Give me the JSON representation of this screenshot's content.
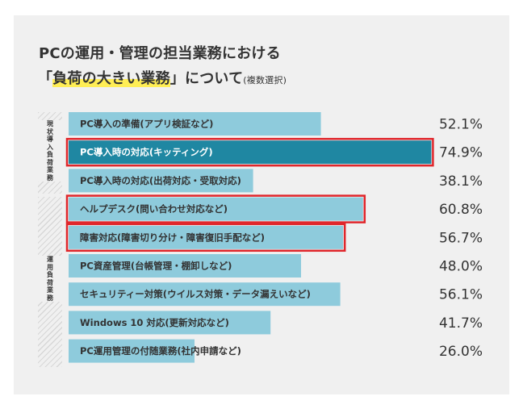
{
  "title": {
    "line1": "PCの運用・管理の担当業務における",
    "line2_open": "「",
    "line2_highlight": "負荷の大きい業務",
    "line2_close": "」について",
    "line2_note": "(複数選択)"
  },
  "groups": {
    "current": "現状導入負荷業務",
    "operation": "運用負荷業務"
  },
  "colors": {
    "bar": "#8ecbdc",
    "bar_emphasis": "#1f87a2",
    "frame": "#e0262b",
    "panel": "#f0f0f0",
    "highlight": "#ffee55"
  },
  "chart_data": {
    "type": "bar",
    "orientation": "horizontal",
    "unit": "%",
    "xlim": [
      0,
      100
    ],
    "categories": [
      "PC導入の準備(アプリ検証など)",
      "PC導入時の対応(キッティング)",
      "PC導入時の対応(出荷対応・受取対応)",
      "ヘルプデスク(問い合わせ対応など)",
      "障害対応(障害切り分け・障害復旧手配など)",
      "PC資産管理(台帳管理・棚卸しなど)",
      "セキュリティー対策(ウイルス対策・データ漏えいなど)",
      "Windows 10 対応(更新対応など)",
      "PC運用管理の付随業務(社内申請など)"
    ],
    "values": [
      52.1,
      74.9,
      38.1,
      60.8,
      56.7,
      48.0,
      56.1,
      41.7,
      26.0
    ],
    "value_labels": [
      "52.1%",
      "74.9%",
      "38.1%",
      "60.8%",
      "56.7%",
      "48.0%",
      "56.1%",
      "41.7%",
      "26.0%"
    ],
    "emphasized": [
      false,
      true,
      false,
      false,
      false,
      false,
      false,
      false,
      false
    ],
    "framed": [
      false,
      true,
      false,
      true,
      true,
      false,
      false,
      false,
      false
    ],
    "group_of": [
      "current",
      "current",
      "current",
      "operation",
      "operation",
      "operation",
      "operation",
      "operation",
      "operation"
    ]
  }
}
